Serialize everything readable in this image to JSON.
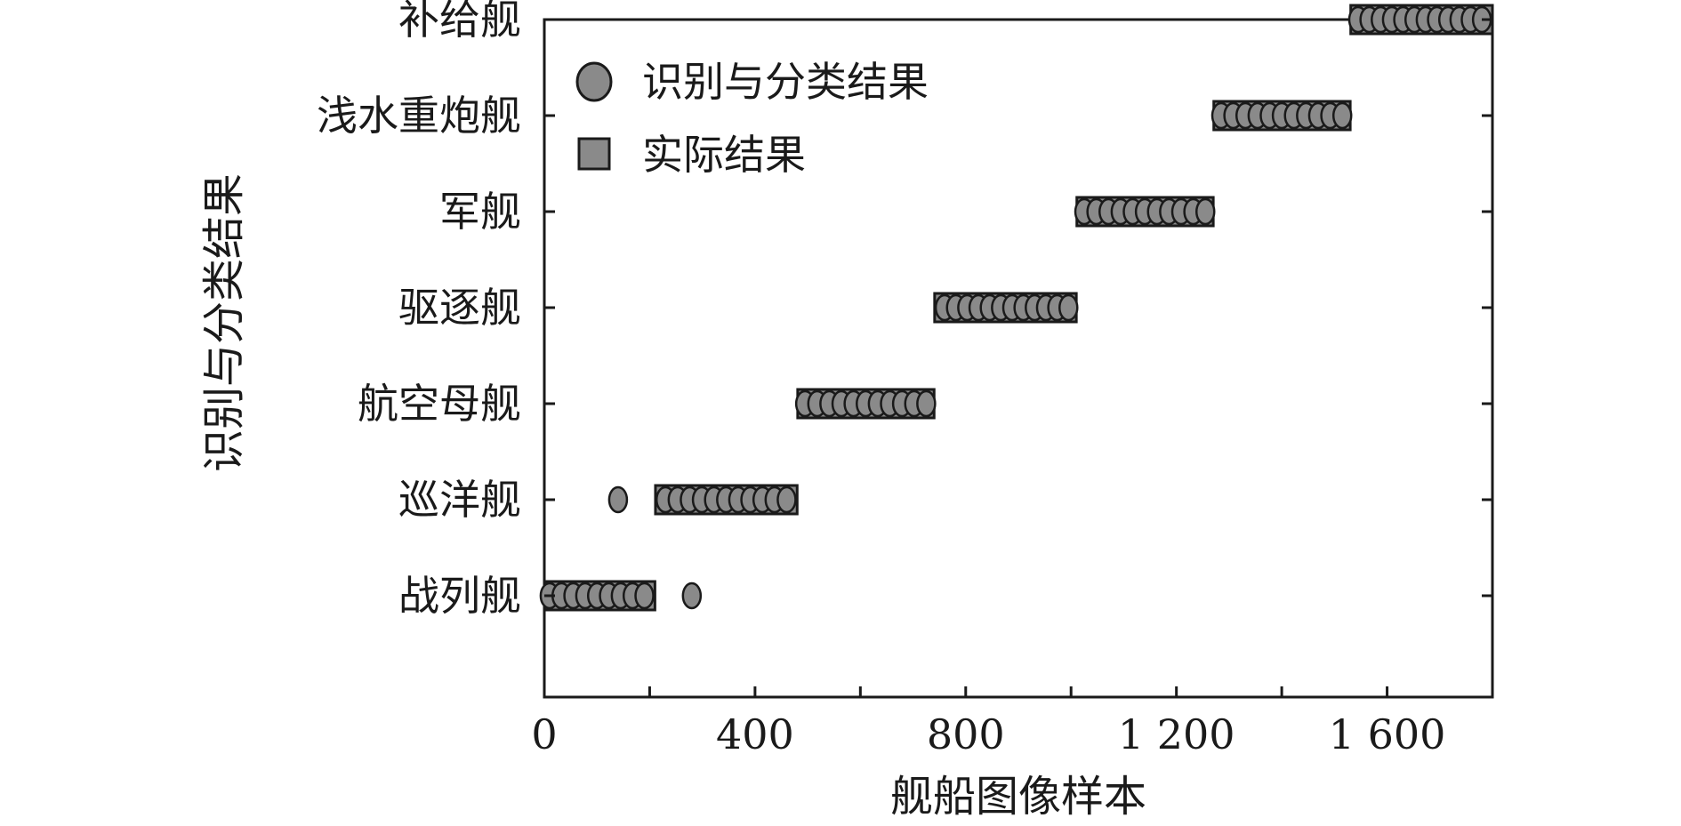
{
  "chart_data": {
    "type": "scatter",
    "xlabel": "舰船图像样本",
    "ylabel": "识别与分类结果",
    "xlim": [
      0,
      1800
    ],
    "x_ticks": [
      0,
      400,
      800,
      1200,
      1600
    ],
    "x_tick_labels": [
      "0",
      "400",
      "800",
      "1 200",
      "1 600"
    ],
    "x_minor_ticks": [
      200,
      600,
      1000,
      1400
    ],
    "categories": [
      "战列舰",
      "巡洋舰",
      "航空母舰",
      "驱逐舰",
      "军舰",
      "浅水重炮舰",
      "补给舰"
    ],
    "legend": {
      "position": "top-left",
      "entries": [
        {
          "label": "识别与分类结果",
          "marker": "circle"
        },
        {
          "label": "实际结果",
          "marker": "square"
        }
      ]
    },
    "colors": {
      "marker_fill": "#8a8a8a",
      "marker_stroke": "#1a1a1a",
      "axis": "#1a1a1a"
    },
    "series": [
      {
        "name": "实际结果",
        "marker": "square",
        "ranges": [
          {
            "category": "战列舰",
            "x_start": 1,
            "x_end": 210
          },
          {
            "category": "巡洋舰",
            "x_start": 211,
            "x_end": 480
          },
          {
            "category": "航空母舰",
            "x_start": 481,
            "x_end": 740
          },
          {
            "category": "驱逐舰",
            "x_start": 741,
            "x_end": 1010
          },
          {
            "category": "军舰",
            "x_start": 1011,
            "x_end": 1270
          },
          {
            "category": "浅水重炮舰",
            "x_start": 1271,
            "x_end": 1530
          },
          {
            "category": "补给舰",
            "x_start": 1531,
            "x_end": 1800
          }
        ]
      },
      {
        "name": "识别与分类结果",
        "marker": "circle",
        "ranges": [
          {
            "category": "战列舰",
            "x_start": 10,
            "x_end": 190
          },
          {
            "category": "巡洋舰",
            "x_start": 230,
            "x_end": 460
          },
          {
            "category": "航空母舰",
            "x_start": 495,
            "x_end": 725
          },
          {
            "category": "驱逐舰",
            "x_start": 760,
            "x_end": 995
          },
          {
            "category": "军舰",
            "x_start": 1025,
            "x_end": 1255
          },
          {
            "category": "浅水重炮舰",
            "x_start": 1285,
            "x_end": 1515
          },
          {
            "category": "补给舰",
            "x_start": 1545,
            "x_end": 1780
          }
        ],
        "outliers": [
          {
            "category": "巡洋舰",
            "x": 140
          },
          {
            "category": "战列舰",
            "x": 280
          }
        ]
      }
    ]
  }
}
